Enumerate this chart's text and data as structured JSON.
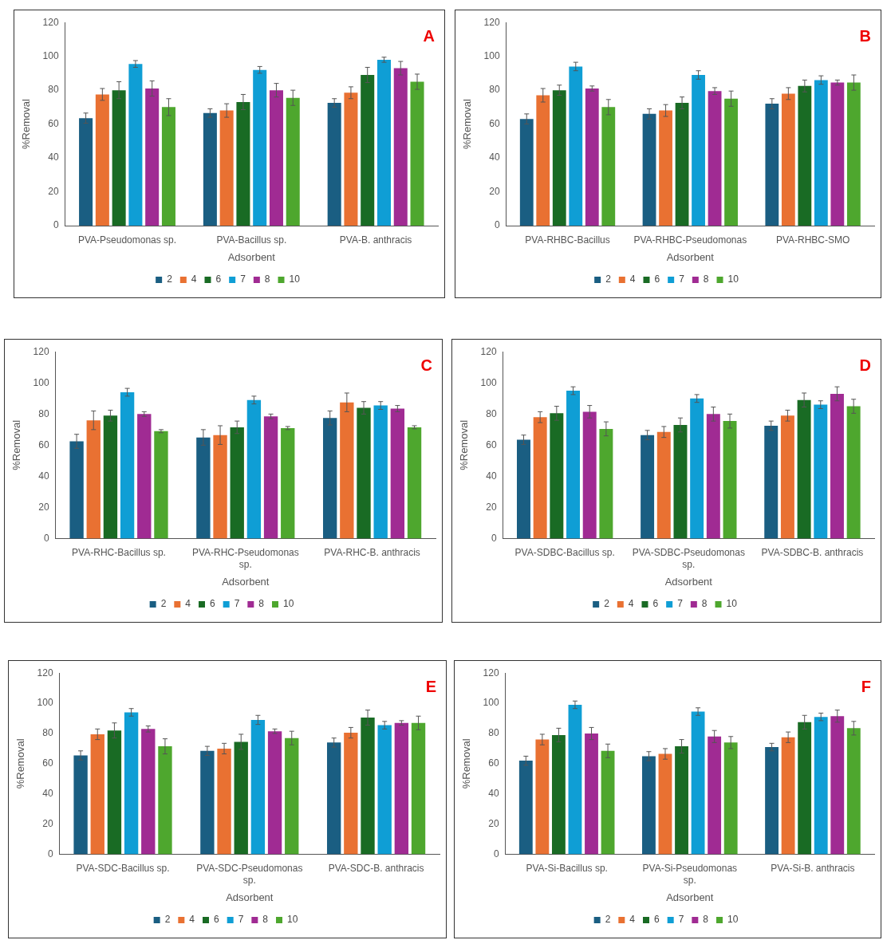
{
  "chart_data": [
    {
      "type": "bar",
      "xlabel": "Adsorbent",
      "ylabel": "%Removal",
      "annotations": [
        "A"
      ],
      "legend": "bottom",
      "ylim": [
        0,
        120
      ],
      "yticks": [
        0,
        20,
        40,
        60,
        80,
        100,
        120
      ],
      "categories": [
        "PVA-Pseudomonas sp.",
        "PVA-Bacillus sp.",
        "PVA-B. anthracis"
      ],
      "series": [
        {
          "name": "2",
          "color": "#1a5e82",
          "values": [
            63.5,
            66.5,
            72.5
          ],
          "errors": [
            3,
            2.5,
            2.5
          ]
        },
        {
          "name": "4",
          "color": "#e97132",
          "values": [
            77.5,
            68,
            78.5
          ],
          "errors": [
            3.5,
            4,
            3.5
          ]
        },
        {
          "name": "6",
          "color": "#196b24",
          "values": [
            80,
            73,
            89
          ],
          "errors": [
            5,
            4.5,
            4.5
          ]
        },
        {
          "name": "7",
          "color": "#0f9ed5",
          "values": [
            95.5,
            92,
            98
          ],
          "errors": [
            2,
            2,
            1.5
          ]
        },
        {
          "name": "8",
          "color": "#a02b93",
          "values": [
            81,
            80,
            93
          ],
          "errors": [
            4.5,
            4,
            4
          ]
        },
        {
          "name": "10",
          "color": "#4ea72e",
          "values": [
            70,
            75.5,
            85
          ],
          "errors": [
            5,
            4.5,
            4.5
          ]
        }
      ]
    },
    {
      "type": "bar",
      "xlabel": "Adsorbent",
      "ylabel": "%Removal",
      "annotations": [
        "B"
      ],
      "legend": "bottom",
      "ylim": [
        0,
        120
      ],
      "yticks": [
        0,
        20,
        40,
        60,
        80,
        100,
        120
      ],
      "categories": [
        "PVA-RHBC-Bacillus",
        "PVA-RHBC-Pseudomonas",
        "PVA-RHBC-SMO"
      ],
      "series": [
        {
          "name": "2",
          "color": "#1a5e82",
          "values": [
            63,
            66,
            72
          ],
          "errors": [
            3,
            3,
            3
          ]
        },
        {
          "name": "4",
          "color": "#e97132",
          "values": [
            77,
            68,
            78
          ],
          "errors": [
            4,
            3.5,
            3.5
          ]
        },
        {
          "name": "6",
          "color": "#196b24",
          "values": [
            80,
            72.5,
            82.5
          ],
          "errors": [
            3,
            3.5,
            3.5
          ]
        },
        {
          "name": "7",
          "color": "#0f9ed5",
          "values": [
            94,
            89,
            86
          ],
          "errors": [
            2.5,
            2.5,
            2.5
          ]
        },
        {
          "name": "8",
          "color": "#a02b93",
          "values": [
            81,
            79.5,
            84.5
          ],
          "errors": [
            1.5,
            2,
            1.5
          ]
        },
        {
          "name": "10",
          "color": "#4ea72e",
          "values": [
            70,
            75,
            84.5
          ],
          "errors": [
            4.5,
            4.5,
            4.5
          ]
        }
      ]
    },
    {
      "type": "bar",
      "xlabel": "Adsorbent",
      "ylabel": "%Removal",
      "annotations": [
        "C"
      ],
      "legend": "bottom",
      "ylim": [
        0,
        120
      ],
      "yticks": [
        0,
        20,
        40,
        60,
        80,
        100,
        120
      ],
      "categories": [
        "PVA-RHC-Bacillus sp.",
        "PVA-RHC-Pseudomonas sp.",
        "PVA-RHC-B. anthracis"
      ],
      "series": [
        {
          "name": "2",
          "color": "#1a5e82",
          "values": [
            62.5,
            65,
            77.5
          ],
          "errors": [
            4.5,
            5,
            4.5
          ]
        },
        {
          "name": "4",
          "color": "#e97132",
          "values": [
            76,
            66.5,
            87.5
          ],
          "errors": [
            6,
            6,
            6
          ]
        },
        {
          "name": "6",
          "color": "#196b24",
          "values": [
            79,
            71.5,
            84
          ],
          "errors": [
            3.5,
            4,
            4
          ]
        },
        {
          "name": "7",
          "color": "#0f9ed5",
          "values": [
            94,
            89,
            85.5
          ],
          "errors": [
            2.5,
            2.5,
            2.5
          ]
        },
        {
          "name": "8",
          "color": "#a02b93",
          "values": [
            80,
            78.5,
            83.5
          ],
          "errors": [
            1.5,
            1.5,
            2
          ]
        },
        {
          "name": "10",
          "color": "#4ea72e",
          "values": [
            69,
            71,
            71.5
          ],
          "errors": [
            1,
            1,
            1
          ]
        }
      ]
    },
    {
      "type": "bar",
      "xlabel": "Adsorbent",
      "ylabel": "%Removal",
      "annotations": [
        "D"
      ],
      "legend": "bottom",
      "ylim": [
        0,
        120
      ],
      "yticks": [
        0,
        20,
        40,
        60,
        80,
        100,
        120
      ],
      "categories": [
        "PVA-SDBC-Bacillus sp.",
        "PVA-SDBC-Pseudomonas sp.",
        "PVA-SDBC-B. anthracis"
      ],
      "series": [
        {
          "name": "2",
          "color": "#1a5e82",
          "values": [
            63.5,
            66.5,
            72.5
          ],
          "errors": [
            3,
            3,
            3
          ]
        },
        {
          "name": "4",
          "color": "#e97132",
          "values": [
            78,
            68.5,
            79
          ],
          "errors": [
            3.5,
            3.5,
            3.5
          ]
        },
        {
          "name": "6",
          "color": "#196b24",
          "values": [
            80.5,
            73,
            89
          ],
          "errors": [
            4.5,
            4.5,
            4.5
          ]
        },
        {
          "name": "7",
          "color": "#0f9ed5",
          "values": [
            95,
            90,
            86
          ],
          "errors": [
            2.5,
            2.5,
            2.5
          ]
        },
        {
          "name": "8",
          "color": "#a02b93",
          "values": [
            81.5,
            80,
            93
          ],
          "errors": [
            4,
            4.5,
            4.5
          ]
        },
        {
          "name": "10",
          "color": "#4ea72e",
          "values": [
            70.5,
            75.5,
            85
          ],
          "errors": [
            4.5,
            4.5,
            4.5
          ]
        }
      ]
    },
    {
      "type": "bar",
      "xlabel": "Adsorbent",
      "ylabel": "%Removal",
      "annotations": [
        "E"
      ],
      "legend": "bottom",
      "ylim": [
        0,
        120
      ],
      "yticks": [
        0,
        20,
        40,
        60,
        80,
        100,
        120
      ],
      "categories": [
        "PVA-SDC-Bacillus sp.",
        "PVA-SDC-Pseudomonas sp.",
        "PVA-SDC-B. anthracis"
      ],
      "series": [
        {
          "name": "2",
          "color": "#1a5e82",
          "values": [
            65.5,
            68.5,
            74
          ],
          "errors": [
            3,
            3,
            3
          ]
        },
        {
          "name": "4",
          "color": "#e97132",
          "values": [
            79.5,
            70,
            80.5
          ],
          "errors": [
            3.5,
            3.5,
            3.5
          ]
        },
        {
          "name": "6",
          "color": "#196b24",
          "values": [
            82,
            74.5,
            90.5
          ],
          "errors": [
            5,
            5,
            5
          ]
        },
        {
          "name": "7",
          "color": "#0f9ed5",
          "values": [
            94,
            89,
            85.5
          ],
          "errors": [
            2.5,
            3,
            2.5
          ]
        },
        {
          "name": "8",
          "color": "#a02b93",
          "values": [
            83,
            81.5,
            87
          ],
          "errors": [
            2,
            1.5,
            1.5
          ]
        },
        {
          "name": "10",
          "color": "#4ea72e",
          "values": [
            71.5,
            77,
            87
          ],
          "errors": [
            5,
            4.5,
            4.5
          ]
        }
      ]
    },
    {
      "type": "bar",
      "xlabel": "Adsorbent",
      "ylabel": "%Removal",
      "annotations": [
        "F"
      ],
      "legend": "bottom",
      "ylim": [
        0,
        120
      ],
      "yticks": [
        0,
        20,
        40,
        60,
        80,
        100,
        120
      ],
      "categories": [
        "PVA-Si-Bacillus sp.",
        "PVA-Si-Pseudomonas sp.",
        "PVA-Si-B. anthracis"
      ],
      "series": [
        {
          "name": "2",
          "color": "#1a5e82",
          "values": [
            62,
            65,
            71
          ],
          "errors": [
            3,
            3,
            2.5
          ]
        },
        {
          "name": "4",
          "color": "#e97132",
          "values": [
            76,
            66.5,
            77.5
          ],
          "errors": [
            3.5,
            3.5,
            3.5
          ]
        },
        {
          "name": "6",
          "color": "#196b24",
          "values": [
            79,
            71.5,
            87.5
          ],
          "errors": [
            4.5,
            4.5,
            4.5
          ]
        },
        {
          "name": "7",
          "color": "#0f9ed5",
          "values": [
            99,
            94.5,
            91
          ],
          "errors": [
            2.5,
            2.5,
            2.5
          ]
        },
        {
          "name": "8",
          "color": "#a02b93",
          "values": [
            80,
            78,
            91.5
          ],
          "errors": [
            4,
            4,
            4
          ]
        },
        {
          "name": "10",
          "color": "#4ea72e",
          "values": [
            68.5,
            74,
            83.5
          ],
          "errors": [
            4.5,
            4,
            4.5
          ]
        }
      ]
    }
  ]
}
